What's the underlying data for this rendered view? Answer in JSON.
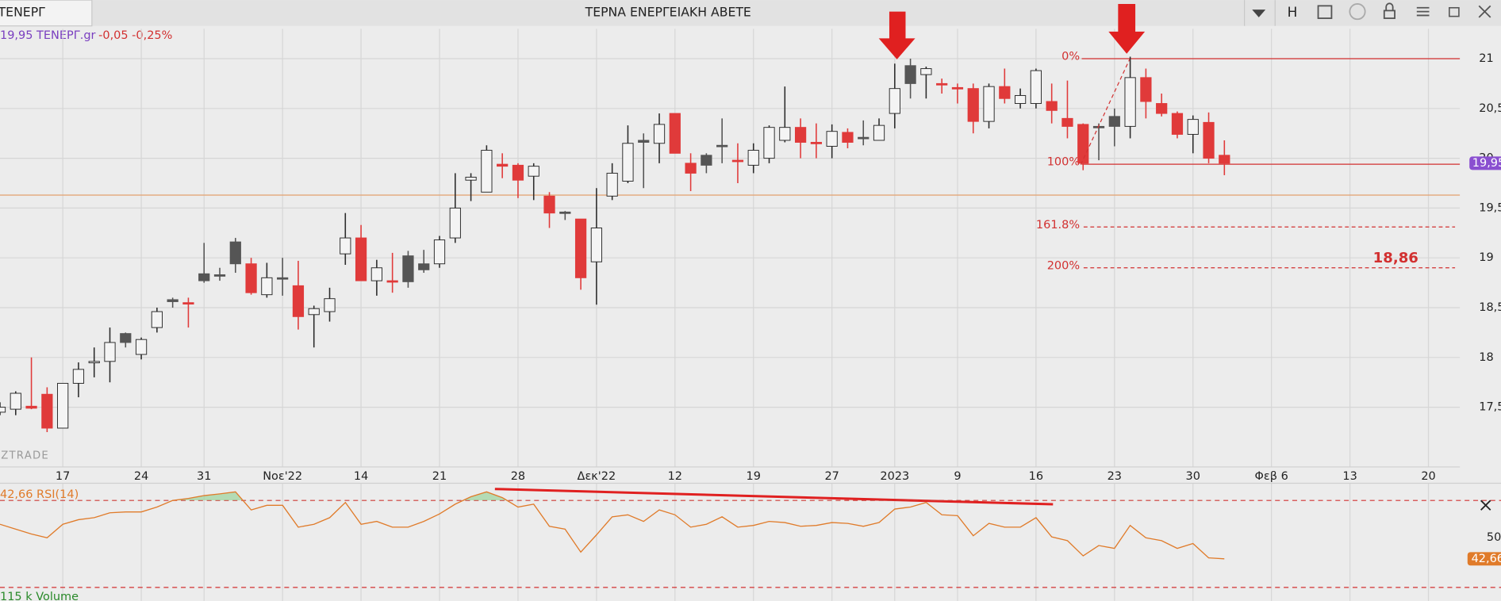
{
  "header": {
    "symbol": "ΤΕΝΕΡΓ",
    "title": "ΤΕΡΝΑ ΕΝΕΡΓΕΙΑΚΗ ΑΒΕΤΕ",
    "mode": "H"
  },
  "chart_data": {
    "type": "candlestick",
    "legend": {
      "price_symbol": "19,95 ΤΕΝΕΡΓ.gr",
      "change": "-0,05 -0,25%"
    },
    "watermark": "ZTRADE",
    "open": [
      17.45,
      17.48,
      17.51,
      17.63,
      17.29,
      17.74,
      17.95,
      17.96,
      18.24,
      18.03,
      18.3,
      18.58,
      18.55,
      18.84,
      18.83,
      19.16,
      18.94,
      18.63,
      18.8,
      18.72,
      18.43,
      18.46,
      19.04,
      19.2,
      18.77,
      18.77,
      19.02,
      18.94,
      18.94,
      19.2,
      19.78,
      19.66,
      19.94,
      19.93,
      19.82,
      19.62,
      19.46,
      19.39,
      18.96,
      19.62,
      19.77,
      20.18,
      20.15,
      20.45,
      19.95,
      20.03,
      20.13,
      19.98,
      19.93,
      20.0,
      20.18,
      20.31,
      20.16,
      20.12,
      20.26,
      20.21,
      20.18,
      20.45,
      20.93,
      20.84,
      20.75,
      20.71,
      20.7,
      20.37,
      20.72,
      20.55,
      20.55,
      20.57,
      20.4,
      20.34,
      20.32,
      20.42,
      20.32,
      20.81,
      20.55,
      20.45,
      20.24,
      20.36,
      20.03
    ],
    "high": [
      17.55,
      17.66,
      18.0,
      17.7,
      17.74,
      17.95,
      18.1,
      18.3,
      18.25,
      18.2,
      18.5,
      18.6,
      18.6,
      19.15,
      18.9,
      19.2,
      19.0,
      18.95,
      19.0,
      18.97,
      18.52,
      18.7,
      19.45,
      19.33,
      18.98,
      19.05,
      19.07,
      19.08,
      19.22,
      19.85,
      19.85,
      20.13,
      20.05,
      19.95,
      19.95,
      19.66,
      19.47,
      19.39,
      19.7,
      19.95,
      20.33,
      20.25,
      20.45,
      20.45,
      20.05,
      20.05,
      20.4,
      20.15,
      20.15,
      20.33,
      20.72,
      20.4,
      20.35,
      20.34,
      20.3,
      20.38,
      20.4,
      20.95,
      21.0,
      20.92,
      20.8,
      20.75,
      20.75,
      20.75,
      20.9,
      20.7,
      20.9,
      20.75,
      20.78,
      20.35,
      20.35,
      20.5,
      21.02,
      20.9,
      20.65,
      20.47,
      20.43,
      20.46,
      20.18
    ],
    "low": [
      17.42,
      17.42,
      17.48,
      17.25,
      17.29,
      17.6,
      17.8,
      17.75,
      18.1,
      17.98,
      18.25,
      18.5,
      18.3,
      18.75,
      18.77,
      18.85,
      18.63,
      18.6,
      18.62,
      18.28,
      18.1,
      18.36,
      18.93,
      18.77,
      18.62,
      18.65,
      18.7,
      18.85,
      18.9,
      19.15,
      19.57,
      19.66,
      19.8,
      19.6,
      19.58,
      19.3,
      19.38,
      18.68,
      18.53,
      19.58,
      19.75,
      19.7,
      19.95,
      20.05,
      19.67,
      19.85,
      19.95,
      19.75,
      19.85,
      19.95,
      20.16,
      20.0,
      20.0,
      20.0,
      20.1,
      20.13,
      20.18,
      20.3,
      20.6,
      20.6,
      20.65,
      20.55,
      20.25,
      20.3,
      20.55,
      20.5,
      20.5,
      20.35,
      20.2,
      19.88,
      19.98,
      20.12,
      20.2,
      20.4,
      20.42,
      20.2,
      20.05,
      19.95,
      19.83
    ],
    "close": [
      17.5,
      17.64,
      17.49,
      17.29,
      17.74,
      17.88,
      17.96,
      18.15,
      18.15,
      18.18,
      18.46,
      18.56,
      18.54,
      18.77,
      18.82,
      18.94,
      18.65,
      18.8,
      18.8,
      18.41,
      18.49,
      18.59,
      19.2,
      18.77,
      18.9,
      18.76,
      18.76,
      18.88,
      19.18,
      19.5,
      19.81,
      20.08,
      19.92,
      19.78,
      19.92,
      19.45,
      19.45,
      18.8,
      19.3,
      19.85,
      20.15,
      20.16,
      20.34,
      20.05,
      19.85,
      19.93,
      20.12,
      19.97,
      20.08,
      20.31,
      20.31,
      20.16,
      20.15,
      20.27,
      20.16,
      20.2,
      20.33,
      20.7,
      20.75,
      20.9,
      20.74,
      20.7,
      20.37,
      20.72,
      20.6,
      20.63,
      20.88,
      20.48,
      20.32,
      19.95,
      20.32,
      20.32,
      20.81,
      20.57,
      20.45,
      20.24,
      20.39,
      20.0,
      19.95
    ],
    "colors": {
      "up": "#f4f4f4",
      "down": "#e03a3a",
      "flat": "#555555",
      "outline": "#2b2b2b"
    },
    "xlim": [
      0,
      93
    ],
    "xticks": [
      {
        "value": 4,
        "label": "17"
      },
      {
        "value": 9,
        "label": "24"
      },
      {
        "value": 13,
        "label": "31"
      },
      {
        "value": 18,
        "label": "Νοε'22"
      },
      {
        "value": 23,
        "label": "14"
      },
      {
        "value": 28,
        "label": "21"
      },
      {
        "value": 33,
        "label": "28"
      },
      {
        "value": 38,
        "label": "Δεκ'22"
      },
      {
        "value": 43,
        "label": "12"
      },
      {
        "value": 48,
        "label": "19"
      },
      {
        "value": 53,
        "label": "27"
      },
      {
        "value": 57,
        "label": "2023"
      },
      {
        "value": 61,
        "label": "9"
      },
      {
        "value": 66,
        "label": "16"
      },
      {
        "value": 71,
        "label": "23"
      },
      {
        "value": 76,
        "label": "30"
      },
      {
        "value": 81,
        "label": "Φεβ 6"
      },
      {
        "value": 86,
        "label": "13"
      },
      {
        "value": 91,
        "label": "20"
      }
    ],
    "ylim": [
      16.9,
      21.3
    ],
    "yticks": [
      {
        "value": 17.5,
        "label": "17,5"
      },
      18,
      {
        "value": 18.5,
        "label": "18,5"
      },
      19,
      {
        "value": 19.5,
        "label": "19,5"
      },
      20,
      {
        "value": 20.5,
        "label": "20,5"
      },
      21
    ],
    "grid": true,
    "last_price": {
      "value": 19.95,
      "label": "19,95",
      "color": "#8a4fd0"
    },
    "support_line": {
      "value": 19.63,
      "color": "#e3a77a"
    },
    "fib_levels": [
      {
        "value": 21.0,
        "label": "0%"
      },
      {
        "value": 19.94,
        "label": "100%"
      },
      {
        "value": 19.31,
        "label": "161.8%"
      },
      {
        "value": 18.9,
        "label": "200%"
      }
    ],
    "target": {
      "value": 18.86,
      "label": "18,86"
    },
    "rsi": {
      "label": "42,66 RSI(14)",
      "color": "#e07b2a",
      "values": [
        54.7,
        53.0,
        51.3,
        50.0,
        54.7,
        56.3,
        57.0,
        58.7,
        59.0,
        59.0,
        60.7,
        63.0,
        63.7,
        64.7,
        65.3,
        66.0,
        59.7,
        61.3,
        61.3,
        53.7,
        54.7,
        57.0,
        62.3,
        54.7,
        55.7,
        53.7,
        53.7,
        55.7,
        58.3,
        61.7,
        64.3,
        66.0,
        64.0,
        60.7,
        61.7,
        54.0,
        53.0,
        45.0,
        51.0,
        57.3,
        58.0,
        55.7,
        59.7,
        58.0,
        53.7,
        54.7,
        57.3,
        53.7,
        54.3,
        55.7,
        55.3,
        54.0,
        54.3,
        55.3,
        55.0,
        54.0,
        55.3,
        60.0,
        60.7,
        62.3,
        58.0,
        57.7,
        50.7,
        55.0,
        53.7,
        53.7,
        57.0,
        50.3,
        49.0,
        43.7,
        47.3,
        46.3,
        54.3,
        50.0,
        49.0,
        46.3,
        48.0,
        43.0,
        42.66
      ],
      "last_label": "42,66",
      "ylim": [
        28,
        69
      ],
      "yticks": [
        50
      ],
      "levels": [
        63,
        32.7
      ]
    },
    "volume_label": "115 k Volume"
  }
}
